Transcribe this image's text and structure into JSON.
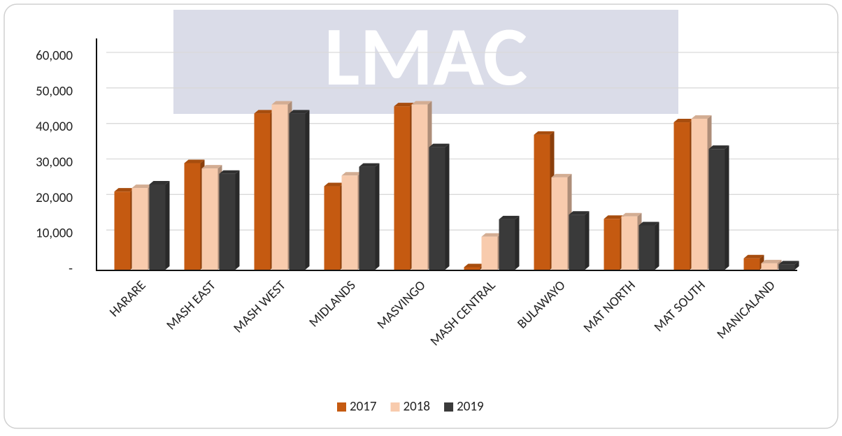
{
  "chart_data": {
    "type": "bar",
    "watermark": "LMAC",
    "categories": [
      "HARARE",
      "MASH EAST",
      "MASH WEST",
      "MIDLANDS",
      "MASVINGO",
      "MASH CENTRAL",
      "BULAWAYO",
      "MAT NORTH",
      "MAT SOUTH",
      "MANICALAND"
    ],
    "series": [
      {
        "name": "2017",
        "color": "#c55a11",
        "values": [
          22000,
          30000,
          44000,
          23500,
          46000,
          700,
          38000,
          14300,
          41500,
          3200
        ]
      },
      {
        "name": "2018",
        "color": "#f8cbad",
        "values": [
          23000,
          28500,
          46500,
          26500,
          46500,
          9300,
          26000,
          15000,
          42500,
          1800
        ]
      },
      {
        "name": "2019",
        "color": "#3a3a3a",
        "values": [
          24000,
          27000,
          44000,
          29000,
          34500,
          14200,
          15500,
          12500,
          34000,
          1500
        ]
      }
    ],
    "ylim": [
      0,
      60000
    ],
    "yticks": [
      {
        "value": 0,
        "label": "-"
      },
      {
        "value": 10000,
        "label": "10,000"
      },
      {
        "value": 20000,
        "label": "20,000"
      },
      {
        "value": 30000,
        "label": "30,000"
      },
      {
        "value": 40000,
        "label": "40,000"
      },
      {
        "value": 50000,
        "label": "50,000"
      },
      {
        "value": 60000,
        "label": "60,000"
      }
    ],
    "grid": true,
    "legend": "bottom"
  }
}
